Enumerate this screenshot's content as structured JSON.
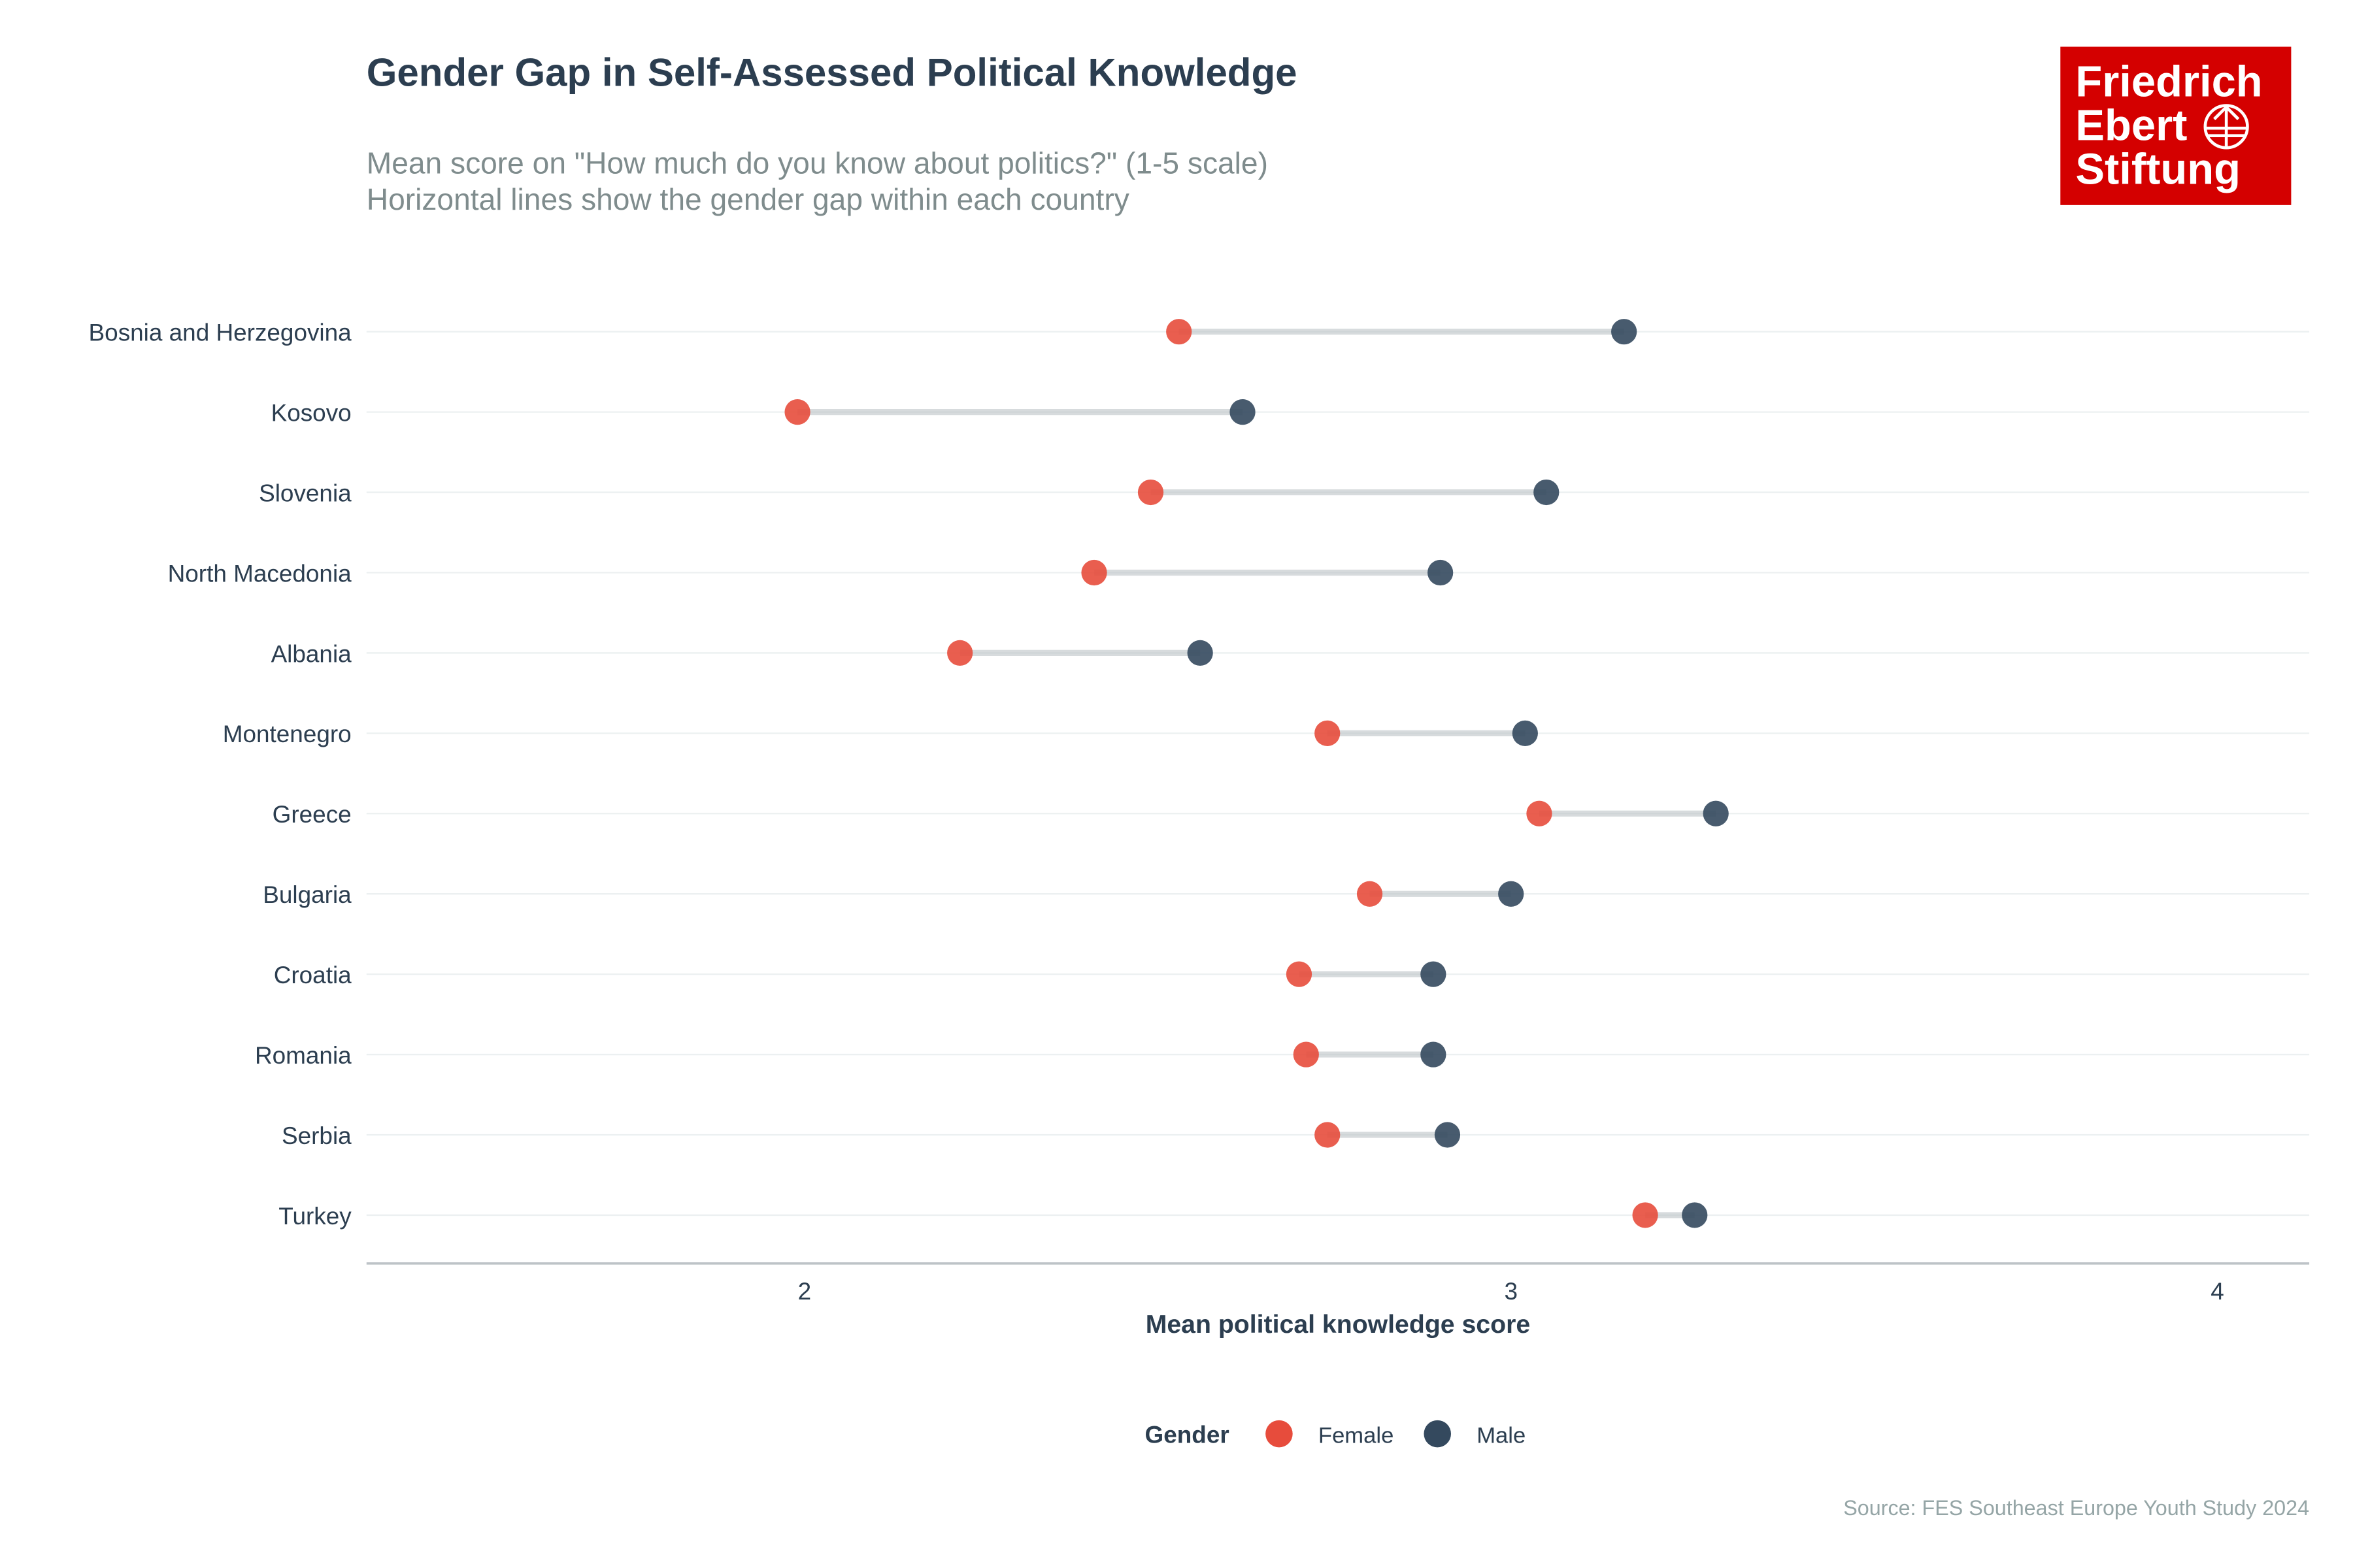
{
  "chart_data": {
    "type": "dumbbell",
    "title": "Gender Gap in Self-Assessed Political Knowledge",
    "subtitle": [
      "Mean score on \"How much do you know about politics?\" (1-5 scale)",
      "Horizontal lines show the gender gap within each country"
    ],
    "xlabel": "Mean political knowledge score",
    "ylabel": "",
    "xlim": [
      1.38,
      4.13
    ],
    "xticks": [
      "2",
      "3",
      "4"
    ],
    "grid": "horizontal",
    "legend": {
      "title": "Gender",
      "placement": "bottom",
      "entries": [
        "Female",
        "Male"
      ]
    },
    "categories": [
      "Bosnia and Herzegovina",
      "Kosovo",
      "Slovenia",
      "North Macedonia",
      "Albania",
      "Montenegro",
      "Greece",
      "Bulgaria",
      "Croatia",
      "Romania",
      "Serbia",
      "Turkey"
    ],
    "series": [
      {
        "name": "Female",
        "color": "#e74c3c",
        "values": [
          2.53,
          1.99,
          2.49,
          2.41,
          2.22,
          2.74,
          3.04,
          2.8,
          2.7,
          2.71,
          2.74,
          3.19
        ]
      },
      {
        "name": "Male",
        "color": "#34495e",
        "values": [
          3.16,
          2.62,
          3.05,
          2.9,
          2.56,
          3.02,
          3.29,
          3.0,
          2.89,
          2.89,
          2.91,
          3.26
        ]
      }
    ],
    "caption": "Source: FES Southeast Europe Youth Study 2024"
  },
  "logo": {
    "lines": [
      "Friedrich",
      "Ebert",
      "Stiftung"
    ],
    "color": "#d40000"
  }
}
